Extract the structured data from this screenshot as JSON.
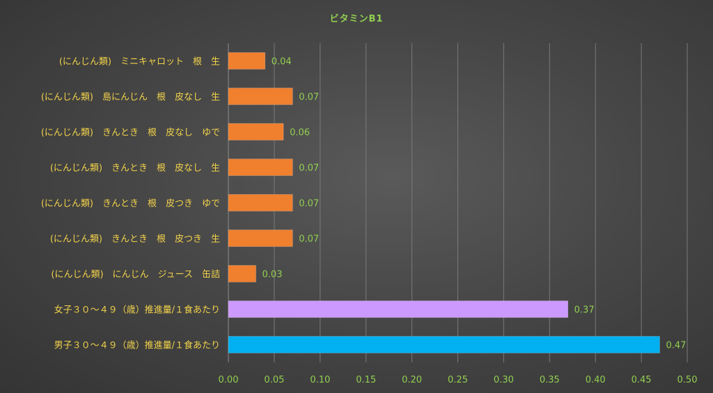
{
  "chart_data": {
    "type": "bar",
    "orientation": "horizontal",
    "title": "ビタミンB1",
    "categories": [
      "(にんじん類)　ミニキャロット　根　生",
      "(にんじん類)　島にんじん　根　皮なし　生",
      "(にんじん類)　きんとき　根　皮なし　ゆで",
      "(にんじん類)　きんとき　根　皮なし　生",
      "(にんじん類)　きんとき　根　皮つき　ゆで",
      "(にんじん類)　きんとき　根　皮つき　生",
      "(にんじん類)　にんじん　ジュース　缶詰",
      "女子３０～４９（歳）推進量/１食あたり",
      "男子３０～４９（歳）推進量/１食あたり"
    ],
    "values": [
      0.04,
      0.07,
      0.06,
      0.07,
      0.07,
      0.07,
      0.03,
      0.37,
      0.47
    ],
    "data_labels": [
      "0.04",
      "0.07",
      "0.06",
      "0.07",
      "0.07",
      "0.07",
      "0.03",
      "0.37",
      "0.47"
    ],
    "bar_colors": [
      "#f07f2e",
      "#f07f2e",
      "#f07f2e",
      "#f07f2e",
      "#f07f2e",
      "#f07f2e",
      "#f07f2e",
      "#cc99ff",
      "#00b0f0"
    ],
    "xlim": [
      0,
      0.5
    ],
    "xticks": [
      "0.00",
      "0.05",
      "0.10",
      "0.15",
      "0.20",
      "0.25",
      "0.30",
      "0.35",
      "0.40",
      "0.45",
      "0.50"
    ],
    "xlabel": "",
    "ylabel": "",
    "grid": "vertical",
    "legend": "none"
  }
}
